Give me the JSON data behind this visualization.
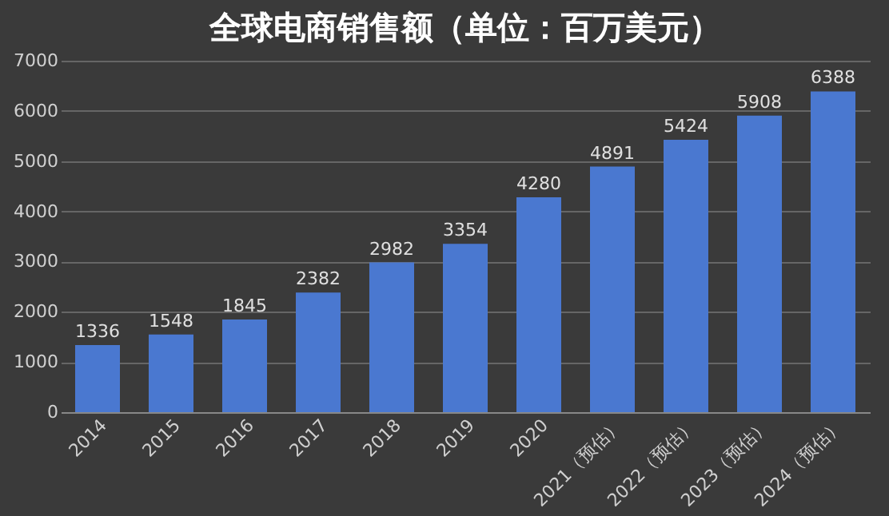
{
  "chart_data": {
    "type": "bar",
    "title": "全球电商销售额（单位：百万美元）",
    "categories": [
      "2014",
      "2015",
      "2016",
      "2017",
      "2018",
      "2019",
      "2020",
      "2021（预估）",
      "2022（预估）",
      "2023（预估）",
      "2024（预估）"
    ],
    "values": [
      1336,
      1548,
      1845,
      2382,
      2982,
      3354,
      4280,
      4891,
      5424,
      5908,
      6388
    ],
    "color": "#4a78d0",
    "ylim": [
      0,
      7000
    ],
    "yticks": [
      0,
      1000,
      2000,
      3000,
      4000,
      5000,
      6000,
      7000
    ],
    "grid": "y",
    "data_labels": true
  }
}
